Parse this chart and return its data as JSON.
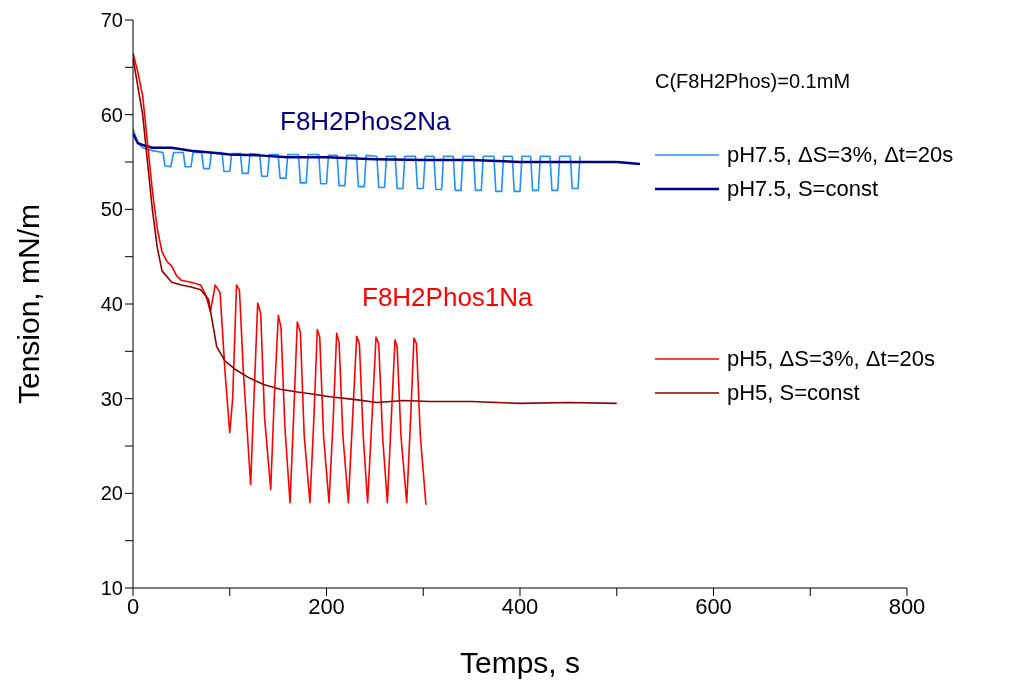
{
  "chart_data": {
    "type": "line",
    "xlabel": "Temps, s",
    "ylabel": "Tension, mN/m",
    "xlim": [
      0,
      800
    ],
    "xticks": [
      0,
      {
        "value": 100,
        "label": null
      },
      200,
      {
        "value": 300,
        "label": null
      },
      400,
      {
        "value": 500,
        "label": null
      },
      600,
      {
        "value": 700,
        "label": null
      },
      800
    ],
    "ylim": [
      10,
      70
    ],
    "yticks": [
      10,
      {
        "value": 15,
        "label": null
      },
      20,
      {
        "value": 25,
        "label": null
      },
      30,
      {
        "value": 35,
        "label": null
      },
      40,
      {
        "value": 45,
        "label": null
      },
      50,
      {
        "value": 55,
        "label": null
      },
      60,
      {
        "value": 65,
        "label": null
      },
      70
    ],
    "grid": false,
    "legend": "right",
    "marker": "none",
    "line_style": "solid",
    "annotations": [
      "C(F8H2Phos)=0.1mM",
      "F8H2Phos2Na",
      "F8H2Phos1Na"
    ],
    "series": [
      {
        "name": "pH7.5, ΔS=3%, Δt=20s",
        "color": "#1e90ff",
        "x": [
          0,
          5,
          10,
          20,
          31,
          33,
          39,
          42,
          52,
          54,
          60,
          62,
          71,
          73,
          79,
          81,
          92,
          94,
          100,
          102,
          111,
          113,
          119,
          121,
          131,
          133,
          139,
          141,
          150,
          152,
          158,
          160,
          171,
          173,
          179,
          181,
          192,
          194,
          200,
          202,
          211,
          213,
          219,
          221,
          231,
          233,
          239,
          241,
          252,
          254,
          260,
          262,
          271,
          273,
          279,
          281,
          292,
          294,
          300,
          302,
          311,
          313,
          319,
          321,
          331,
          333,
          339,
          341,
          352,
          354,
          360,
          362,
          373,
          375,
          381,
          383,
          392,
          394,
          400,
          402,
          411,
          413,
          419,
          421,
          431,
          433,
          439,
          441,
          452,
          454,
          460,
          462
        ],
        "values": [
          58.5,
          57.0,
          56.5,
          56.2,
          56.0,
          54.6,
          54.5,
          56.0,
          56.0,
          54.5,
          54.5,
          56.0,
          56.0,
          54.3,
          54.3,
          56.0,
          56.0,
          54.0,
          54.0,
          55.9,
          55.9,
          53.8,
          53.8,
          55.9,
          55.8,
          53.5,
          53.5,
          55.8,
          55.8,
          53.3,
          53.3,
          55.8,
          55.8,
          52.8,
          52.8,
          55.8,
          55.8,
          52.7,
          52.7,
          55.7,
          55.7,
          52.5,
          52.5,
          55.7,
          55.7,
          52.4,
          52.4,
          55.7,
          55.6,
          52.3,
          52.3,
          55.6,
          55.6,
          52.2,
          52.2,
          55.6,
          55.6,
          52.2,
          52.2,
          55.6,
          55.6,
          52.1,
          52.1,
          55.6,
          55.6,
          52.0,
          52.0,
          55.6,
          55.6,
          52.0,
          52.0,
          55.6,
          55.6,
          51.9,
          51.9,
          55.6,
          55.6,
          51.9,
          51.9,
          55.6,
          55.6,
          52.0,
          52.0,
          55.6,
          55.6,
          52.0,
          52.0,
          55.6,
          55.6,
          52.2,
          52.2,
          55.6
        ]
      },
      {
        "name": "pH7.5, S=const",
        "color": "#000080",
        "x": [
          0,
          5,
          10,
          20,
          40,
          60,
          80,
          100,
          130,
          160,
          200,
          250,
          300,
          350,
          400,
          450,
          500,
          524
        ],
        "values": [
          58.0,
          57.0,
          56.8,
          56.5,
          56.5,
          56.2,
          56.0,
          55.8,
          55.7,
          55.5,
          55.5,
          55.3,
          55.2,
          55.2,
          55.0,
          55.0,
          55.0,
          54.8
        ]
      },
      {
        "name": "pH5, ΔS=3%, Δt=20s",
        "color": "#ff0000",
        "x": [
          0,
          5,
          10,
          15,
          20,
          25,
          30,
          35,
          40,
          45,
          50,
          60,
          70,
          75,
          80,
          85,
          90,
          95,
          100,
          103,
          107,
          110,
          114,
          121.6,
          125,
          128.9,
          132,
          136,
          142.3,
          146,
          150.2,
          153,
          157,
          162.3,
          166,
          169.8,
          173,
          177,
          182.9,
          187,
          190.5,
          193,
          197,
          202.6,
          207,
          210.5,
          213,
          217,
          222.6,
          227,
          231.2,
          234,
          238,
          242.5,
          247,
          251.2,
          254,
          258,
          262.9,
          267,
          270.8,
          273,
          277,
          282.9,
          287,
          290.4,
          293,
          297,
          302.8
        ],
        "values": [
          66.5,
          64.5,
          62,
          57,
          52,
          48,
          45.5,
          44.5,
          44,
          43,
          42.5,
          42.3,
          42.0,
          41.0,
          39.2,
          42.0,
          41.2,
          33,
          26.4,
          30,
          42.0,
          41.5,
          33,
          20.9,
          30,
          40.1,
          39,
          28,
          20.4,
          30,
          38.8,
          37.5,
          27,
          19.0,
          28,
          38.1,
          37,
          26,
          19.0,
          28,
          37.3,
          36.5,
          26,
          19.0,
          28,
          36.9,
          36,
          26,
          19.0,
          28,
          36.6,
          35.8,
          26,
          19.0,
          28,
          36.5,
          35.8,
          26,
          19.0,
          28,
          36.2,
          35.5,
          26,
          19.0,
          28,
          36.4,
          35.8,
          26,
          18.8
        ]
      },
      {
        "name": "pH5, S=const",
        "color": "#8b0000",
        "x": [
          0,
          5,
          10,
          15,
          20,
          25,
          30,
          40,
          50,
          60,
          70,
          78,
          86.5,
          95,
          107,
          120,
          135,
          152,
          170,
          185,
          203.6,
          230,
          252,
          280,
          307,
          350,
          400,
          450,
          500
        ],
        "values": [
          66,
          63,
          60,
          55,
          50,
          46,
          43.5,
          42.3,
          42,
          41.8,
          41.5,
          40.5,
          35.5,
          34,
          33,
          32.2,
          31.5,
          31,
          30.7,
          30.5,
          30.2,
          29.9,
          29.6,
          29.8,
          29.7,
          29.7,
          29.5,
          29.6,
          29.5
        ]
      }
    ]
  }
}
